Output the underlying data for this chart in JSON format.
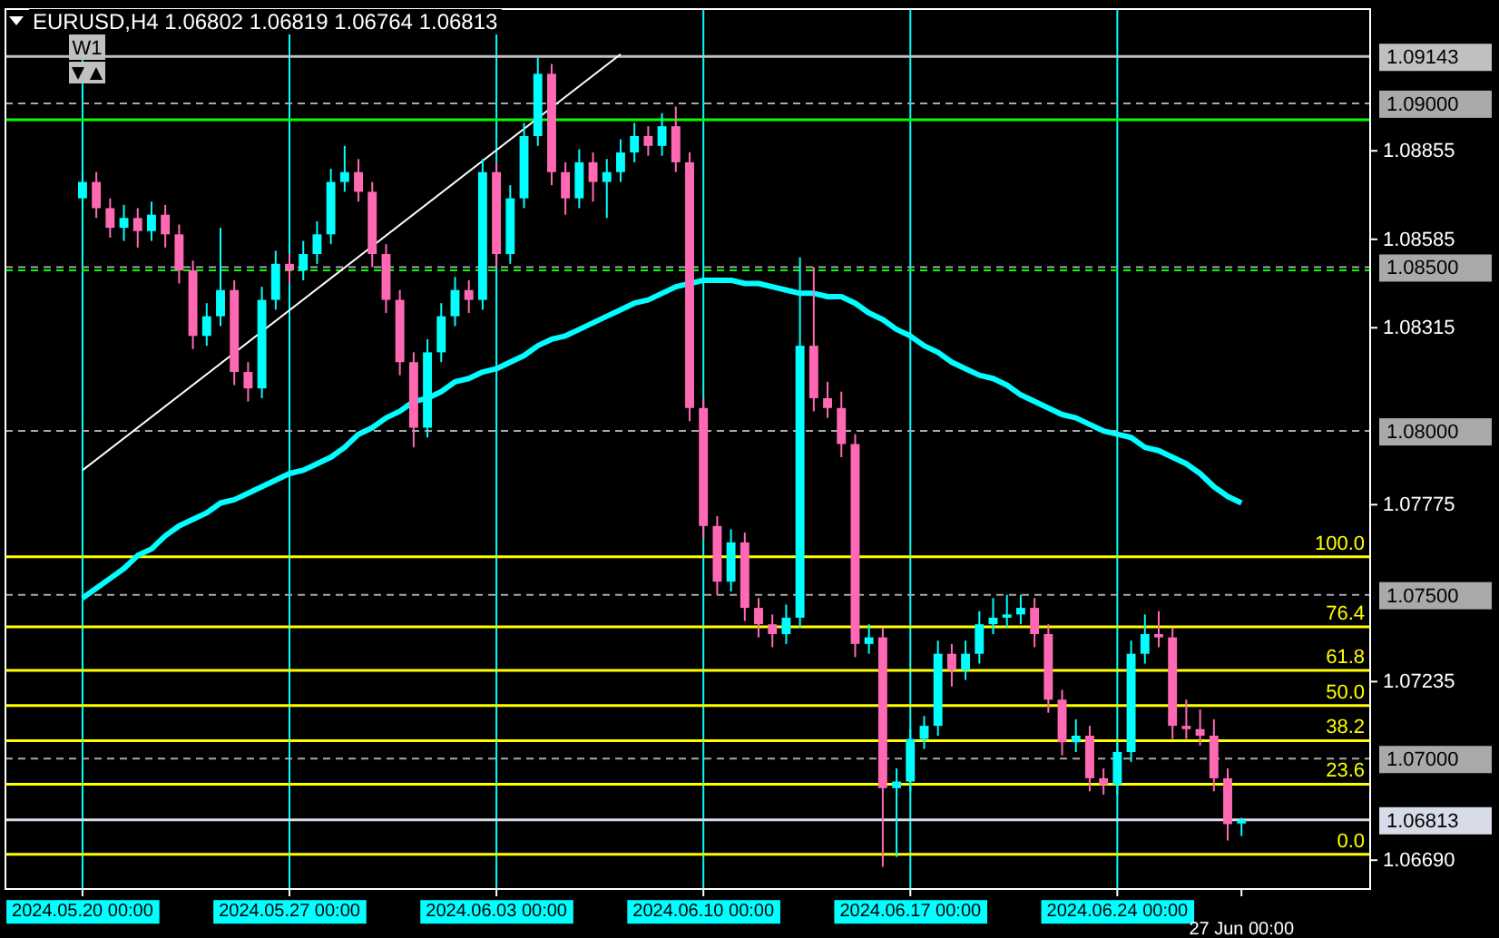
{
  "chart_data": {
    "type": "candlestick",
    "title": "EURUSD,H4 1.06802 1.06819 1.06764 1.06813",
    "categories": [
      "2024.05.20 00:00",
      null,
      null,
      null,
      null,
      null,
      null,
      null,
      null,
      null,
      null,
      null,
      null,
      null,
      null,
      "2024.05.27 00:00",
      null,
      null,
      null,
      null,
      null,
      null,
      null,
      null,
      null,
      null,
      null,
      null,
      null,
      null,
      "2024.06.03 00:00",
      null,
      null,
      null,
      null,
      null,
      null,
      null,
      null,
      null,
      null,
      null,
      null,
      null,
      null,
      "2024.06.10 00:00",
      null,
      null,
      null,
      null,
      null,
      null,
      null,
      null,
      null,
      null,
      null,
      null,
      null,
      null,
      "2024.06.17 00:00",
      null,
      null,
      null,
      null,
      null,
      null,
      null,
      null,
      null,
      null,
      null,
      null,
      null,
      null,
      "2024.06.24 00:00",
      null,
      null,
      null,
      null,
      null,
      null,
      null,
      null,
      "27 Jun 00:00"
    ],
    "ohlc": [
      [
        1.0871,
        1.0879,
        1.0868,
        1.0876
      ],
      [
        1.0876,
        1.0879,
        1.0865,
        1.0868
      ],
      [
        1.0868,
        1.0871,
        1.0859,
        1.0862
      ],
      [
        1.0862,
        1.0869,
        1.0858,
        1.0865
      ],
      [
        1.0865,
        1.0868,
        1.0856,
        1.0861
      ],
      [
        1.0861,
        1.087,
        1.0858,
        1.0866
      ],
      [
        1.0866,
        1.0869,
        1.0856,
        1.086
      ],
      [
        1.086,
        1.0863,
        1.0845,
        1.0849
      ],
      [
        1.0849,
        1.0852,
        1.0825,
        1.0829
      ],
      [
        1.0829,
        1.0839,
        1.0826,
        1.0835
      ],
      [
        1.0835,
        1.0862,
        1.0832,
        1.0843
      ],
      [
        1.0843,
        1.0846,
        1.0814,
        1.0818
      ],
      [
        1.0818,
        1.0821,
        1.0809,
        1.0813
      ],
      [
        1.0813,
        1.0844,
        1.081,
        1.084
      ],
      [
        1.084,
        1.0855,
        1.0837,
        1.0851
      ],
      [
        1.0851,
        1.0854,
        1.0845,
        1.0849
      ],
      [
        1.0849,
        1.0858,
        1.0846,
        1.0854
      ],
      [
        1.0854,
        1.0864,
        1.0851,
        1.086
      ],
      [
        1.086,
        1.088,
        1.0857,
        1.0876
      ],
      [
        1.0876,
        1.0887,
        1.0873,
        1.0879
      ],
      [
        1.0879,
        1.0883,
        1.087,
        1.0873
      ],
      [
        1.0873,
        1.0876,
        1.085,
        1.0854
      ],
      [
        1.0854,
        1.0857,
        1.0836,
        1.084
      ],
      [
        1.084,
        1.0843,
        1.0817,
        1.0821
      ],
      [
        1.0821,
        1.0824,
        1.0795,
        1.0801
      ],
      [
        1.0801,
        1.0828,
        1.0798,
        1.0824
      ],
      [
        1.0824,
        1.0839,
        1.0821,
        1.0835
      ],
      [
        1.0835,
        1.0847,
        1.0832,
        1.0843
      ],
      [
        1.0843,
        1.0846,
        1.0836,
        1.084
      ],
      [
        1.084,
        1.0883,
        1.0837,
        1.0879
      ],
      [
        1.0879,
        1.0882,
        1.085,
        1.0854
      ],
      [
        1.0854,
        1.0875,
        1.0851,
        1.0871
      ],
      [
        1.0871,
        1.0894,
        1.0868,
        1.089
      ],
      [
        1.089,
        1.0914,
        1.0887,
        1.0909
      ],
      [
        1.0909,
        1.0912,
        1.0875,
        1.0879
      ],
      [
        1.0879,
        1.0882,
        1.0866,
        1.0871
      ],
      [
        1.0871,
        1.0886,
        1.0868,
        1.0882
      ],
      [
        1.0882,
        1.0885,
        1.087,
        1.0876
      ],
      [
        1.0876,
        1.0883,
        1.0865,
        1.0879
      ],
      [
        1.0879,
        1.0889,
        1.0876,
        1.0885
      ],
      [
        1.0885,
        1.0894,
        1.0882,
        1.089
      ],
      [
        1.089,
        1.0893,
        1.0884,
        1.0887
      ],
      [
        1.0887,
        1.0897,
        1.0884,
        1.0893
      ],
      [
        1.0893,
        1.0899,
        1.0879,
        1.0882
      ],
      [
        1.0882,
        1.0885,
        1.0803,
        1.0807
      ],
      [
        1.0807,
        1.081,
        1.0767,
        1.0771
      ],
      [
        1.0771,
        1.0774,
        1.075,
        1.0754
      ],
      [
        1.0754,
        1.077,
        1.0751,
        1.0766
      ],
      [
        1.0766,
        1.0769,
        1.0742,
        1.0746
      ],
      [
        1.0746,
        1.0749,
        1.0737,
        1.0741
      ],
      [
        1.0741,
        1.0744,
        1.0734,
        1.0738
      ],
      [
        1.0738,
        1.0747,
        1.0735,
        1.0743
      ],
      [
        1.0743,
        1.0853,
        1.074,
        1.0826
      ],
      [
        1.0826,
        1.085,
        1.0806,
        1.081
      ],
      [
        1.081,
        1.0815,
        1.0804,
        1.0807
      ],
      [
        1.0807,
        1.0812,
        1.0792,
        1.0796
      ],
      [
        1.0796,
        1.0799,
        1.0731,
        1.0735
      ],
      [
        1.0735,
        1.0741,
        1.0732,
        1.0737
      ],
      [
        1.0737,
        1.074,
        1.0667,
        1.0691
      ],
      [
        1.0691,
        1.0697,
        1.067,
        1.0693
      ],
      [
        1.0693,
        1.0709,
        1.069,
        1.0706
      ],
      [
        1.0706,
        1.0713,
        1.0703,
        1.071
      ],
      [
        1.071,
        1.0736,
        1.0707,
        1.0732
      ],
      [
        1.0732,
        1.0735,
        1.0722,
        1.0727
      ],
      [
        1.0727,
        1.0736,
        1.0724,
        1.0732
      ],
      [
        1.0732,
        1.0745,
        1.0729,
        1.0741
      ],
      [
        1.0741,
        1.0749,
        1.0738,
        1.0743
      ],
      [
        1.0743,
        1.075,
        1.074,
        1.0744
      ],
      [
        1.0744,
        1.075,
        1.0741,
        1.0746
      ],
      [
        1.0746,
        1.0749,
        1.0734,
        1.0738
      ],
      [
        1.0738,
        1.0741,
        1.0714,
        1.0718
      ],
      [
        1.0718,
        1.0721,
        1.0701,
        1.0705
      ],
      [
        1.0705,
        1.0712,
        1.0702,
        1.0707
      ],
      [
        1.0707,
        1.071,
        1.069,
        1.0694
      ],
      [
        1.0694,
        1.0697,
        1.0689,
        1.0692
      ],
      [
        1.0692,
        1.0705,
        1.0689,
        1.0702
      ],
      [
        1.0702,
        1.0736,
        1.0699,
        1.0732
      ],
      [
        1.0732,
        1.0744,
        1.0729,
        1.0738
      ],
      [
        1.0738,
        1.0745,
        1.0734,
        1.0737
      ],
      [
        1.0737,
        1.074,
        1.0706,
        1.071
      ],
      [
        1.071,
        1.0718,
        1.0706,
        1.0709
      ],
      [
        1.0709,
        1.0715,
        1.0704,
        1.0707
      ],
      [
        1.0707,
        1.0712,
        1.069,
        1.0694
      ],
      [
        1.0694,
        1.0697,
        1.0675,
        1.068
      ],
      [
        1.06802,
        1.06819,
        1.06764,
        1.06813
      ]
    ],
    "colors": [
      "#00ffff",
      "#ff69b4",
      "#ff69b4",
      "#00ffff",
      "#ff69b4",
      "#00ffff",
      "#ff69b4",
      "#ff69b4",
      "#ff69b4",
      "#00ffff",
      "#00ffff",
      "#ff69b4",
      "#ff69b4",
      "#00ffff",
      "#00ffff",
      "#ff69b4",
      "#00ffff",
      "#00ffff",
      "#00ffff",
      "#00ffff",
      "#ff69b4",
      "#ff69b4",
      "#ff69b4",
      "#ff69b4",
      "#ff69b4",
      "#00ffff",
      "#00ffff",
      "#00ffff",
      "#ff69b4",
      "#00ffff",
      "#ff69b4",
      "#00ffff",
      "#00ffff",
      "#00ffff",
      "#ff69b4",
      "#ff69b4",
      "#00ffff",
      "#ff69b4",
      "#00ffff",
      "#00ffff",
      "#00ffff",
      "#ff69b4",
      "#00ffff",
      "#ff69b4",
      "#ff69b4",
      "#ff69b4",
      "#ff69b4",
      "#00ffff",
      "#ff69b4",
      "#ff69b4",
      "#ff69b4",
      "#00ffff",
      "#00ffff",
      "#ff69b4",
      "#ff69b4",
      "#ff69b4",
      "#ff69b4",
      "#00ffff",
      "#ff69b4",
      "#00ffff",
      "#00ffff",
      "#00ffff",
      "#00ffff",
      "#ff69b4",
      "#00ffff",
      "#00ffff",
      "#00ffff",
      "#00ffff",
      "#00ffff",
      "#ff69b4",
      "#ff69b4",
      "#ff69b4",
      "#00ffff",
      "#ff69b4",
      "#ff69b4",
      "#00ffff",
      "#00ffff",
      "#00ffff",
      "#ff69b4",
      "#ff69b4",
      "#ff69b4",
      "#ff69b4",
      "#ff69b4",
      "#ff69b4",
      "#00ffff"
    ],
    "series": [
      {
        "type": "line",
        "color": "#00ffff",
        "values": [
          1.0749,
          1.0752,
          1.0755,
          1.0758,
          1.0762,
          1.0764,
          1.0768,
          1.0771,
          1.0773,
          1.0775,
          1.0778,
          1.0779,
          1.0781,
          1.0783,
          1.0785,
          1.0787,
          1.0788,
          1.079,
          1.0792,
          1.0795,
          1.0799,
          1.0801,
          1.0804,
          1.0806,
          1.0809,
          1.081,
          1.0812,
          1.0815,
          1.0816,
          1.0818,
          1.0819,
          1.0821,
          1.0823,
          1.0826,
          1.0828,
          1.0829,
          1.0831,
          1.0833,
          1.0835,
          1.0837,
          1.0839,
          1.084,
          1.0842,
          1.0844,
          1.0845,
          1.0846,
          1.0846,
          1.0846,
          1.0845,
          1.0845,
          1.0844,
          1.0843,
          1.0842,
          1.0842,
          1.0841,
          1.0841,
          1.0839,
          1.0836,
          1.0834,
          1.0831,
          1.0829,
          1.0826,
          1.0824,
          1.0821,
          1.0819,
          1.0817,
          1.0816,
          1.0814,
          1.0811,
          1.0809,
          1.0807,
          1.0805,
          1.0804,
          1.0802,
          1.08,
          1.0799,
          1.0798,
          1.0795,
          1.0794,
          1.0792,
          1.079,
          1.0787,
          1.0783,
          1.078,
          1.0778
        ]
      },
      {
        "type": "line",
        "color": "#ffffff",
        "values": [
          1.0788,
          null,
          null,
          null,
          null,
          null,
          null,
          null,
          null,
          null,
          null,
          null,
          null,
          null,
          null,
          null,
          null,
          null,
          null,
          null,
          null,
          null,
          null,
          null,
          null,
          null,
          null,
          null,
          null,
          null,
          null,
          null,
          null,
          null,
          null,
          null,
          null,
          null,
          null,
          1.0915,
          null,
          null,
          null,
          null,
          null,
          null,
          null,
          null,
          null,
          null,
          null,
          null,
          null,
          null,
          null,
          null,
          null,
          null,
          null,
          null,
          null,
          null,
          null,
          null,
          null,
          null,
          null,
          null,
          null,
          null,
          null,
          null,
          null,
          null,
          null,
          null,
          null,
          null,
          null,
          null,
          null,
          null,
          null,
          null,
          null
        ]
      }
    ],
    "ylim": [
      1.06602,
      1.09271
    ],
    "yticks": [
      1.08855,
      1.08585,
      1.08315,
      1.07775,
      1.07235,
      {
        "value": 1.0669,
        "label": "1.06690"
      }
    ],
    "ref_lines": [
      {
        "axis": "x",
        "value": "2024.05.20 00:00",
        "color": "#00ffff"
      },
      {
        "axis": "x",
        "value": "2024.05.27 00:00",
        "color": "#00ffff"
      },
      {
        "axis": "x",
        "value": "2024.06.03 00:00",
        "color": "#00ffff"
      },
      {
        "axis": "x",
        "value": "2024.06.10 00:00",
        "color": "#00ffff"
      },
      {
        "axis": "x",
        "value": "2024.06.17 00:00",
        "color": "#00ffff"
      },
      {
        "axis": "x",
        "value": "2024.06.24 00:00",
        "color": "#00ffff"
      },
      {
        "axis": "y",
        "value": 1.09143,
        "label": "1.09143",
        "color": "#c0c0c0",
        "line_style": "solid"
      },
      {
        "axis": "y",
        "value": 1.09,
        "label": "1.09000",
        "color": "#a9a9a9",
        "line_style": "dashed"
      },
      {
        "axis": "y",
        "value": 1.085,
        "label": "1.08500",
        "color": "#a9a9a9",
        "line_style": "dashed"
      },
      {
        "axis": "y",
        "value": 1.08,
        "label": "1.08000",
        "color": "#a9a9a9",
        "line_style": "dashed"
      },
      {
        "axis": "y",
        "value": 1.075,
        "label": "1.07500",
        "color": "#a9a9a9",
        "line_style": "dashed"
      },
      {
        "axis": "y",
        "value": 1.07,
        "label": "1.07000",
        "color": "#a9a9a9",
        "line_style": "dashed"
      },
      {
        "axis": "y",
        "value": 1.06813,
        "label": "1.06813",
        "color": "#d8dce8",
        "line_style": "solid"
      },
      {
        "axis": "y",
        "value": 1.0895,
        "color": "#00ff00",
        "line_style": "solid"
      },
      {
        "axis": "y",
        "value": 1.0849,
        "color": "#00ff00",
        "line_style": "dashed"
      },
      {
        "axis": "y",
        "value": 1.07616,
        "color": "#ffff00",
        "line_style": "solid"
      },
      {
        "axis": "y",
        "value": 1.07402,
        "color": "#ffff00",
        "line_style": "solid"
      },
      {
        "axis": "y",
        "value": 1.07269,
        "color": "#ffff00",
        "line_style": "solid"
      },
      {
        "axis": "y",
        "value": 1.07162,
        "color": "#ffff00",
        "line_style": "solid"
      },
      {
        "axis": "y",
        "value": 1.07055,
        "color": "#ffff00",
        "line_style": "solid"
      },
      {
        "axis": "y",
        "value": 1.06922,
        "color": "#ffff00",
        "line_style": "solid"
      },
      {
        "axis": "y",
        "value": 1.06708,
        "color": "#ffff00",
        "line_style": "solid"
      }
    ],
    "annotations": [
      "W1",
      {
        "text": "100.0",
        "y": 1.07616
      },
      {
        "text": "76.4",
        "y": 1.07402
      },
      {
        "text": "61.8",
        "y": 1.07269
      },
      {
        "text": "50.0",
        "y": 1.07162
      },
      {
        "text": "38.2",
        "y": 1.07055
      },
      {
        "text": "23.6",
        "y": 1.06922
      },
      {
        "text": "0.0",
        "y": 1.06708
      }
    ]
  }
}
